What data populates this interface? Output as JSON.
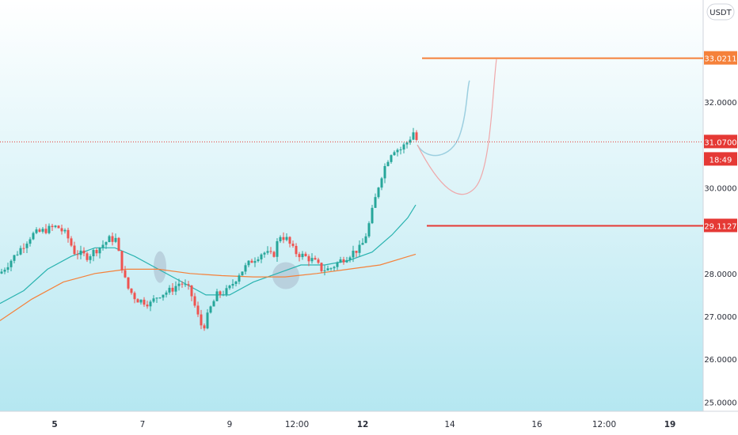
{
  "currency_badge": "USDT",
  "chart_data": {
    "type": "candlestick",
    "y_axis": {
      "ticks": [
        "32.0000",
        "30.0000",
        "28.0000",
        "27.0000",
        "26.0000",
        "25.0000"
      ],
      "tick_values": [
        32,
        30,
        28,
        27,
        26,
        25
      ]
    },
    "x_axis": {
      "ticks": [
        "5",
        "7",
        "9",
        "12:00",
        "12",
        "14",
        "16",
        "12:00",
        "19"
      ],
      "bold": [
        true,
        false,
        false,
        false,
        true,
        false,
        false,
        false,
        true
      ]
    },
    "last_price": {
      "label": "31.0700",
      "value": 31.07,
      "countdown": "18:49",
      "color": "#e53935"
    },
    "levels": [
      {
        "label": "33.0211",
        "value": 33.0211,
        "color": "#f5813a"
      },
      {
        "label": "29.1127",
        "value": 29.1127,
        "color": "#e53935"
      }
    ],
    "moving_averages": [
      {
        "color": "#2ab3b0"
      },
      {
        "color": "#f5813a"
      }
    ],
    "colors": {
      "up": "#26a69a",
      "down": "#ef5350",
      "background_top": "#ffffff",
      "background_bottom": "#b5e7f1",
      "projection_blue": "#9ccfe0",
      "projection_pink": "#efa8aa",
      "highlight": "#b0c4d4"
    }
  }
}
